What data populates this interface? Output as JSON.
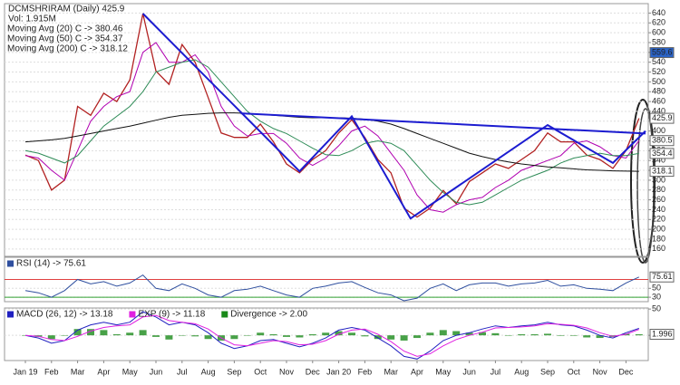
{
  "chart_data": [
    {
      "type": "line",
      "title": "DCMSHRIRAM (Daily) 425.9",
      "subtitle": "Vol: 1.915M",
      "legend": "top-left",
      "grid": true,
      "ylim": [
        145,
        650
      ],
      "yticks": [
        160,
        180,
        200,
        220,
        240,
        260,
        280,
        300,
        320,
        340,
        360,
        380,
        400,
        420,
        440,
        460,
        480,
        500,
        520,
        540,
        560,
        580,
        600,
        620,
        640
      ],
      "series": [
        {
          "color": "#b22222",
          "values": [
            351,
            340,
            280,
            300,
            450,
            432,
            477,
            460,
            504,
            639,
            522,
            495,
            576,
            540,
            468,
            396,
            387,
            387,
            414,
            378,
            333,
            315,
            342,
            360,
            396,
            423,
            387,
            342,
            315,
            243,
            225,
            243,
            279,
            252,
            297,
            315,
            333,
            324,
            342,
            360,
            396,
            378,
            378,
            351,
            342,
            324,
            360,
            425.9
          ]
        },
        {
          "name": "Moving Avg (20) C -> 380.46",
          "color": "#b000b0",
          "values": [
            350,
            345,
            320,
            300,
            360,
            420,
            450,
            470,
            480,
            560,
            580,
            540,
            540,
            555,
            520,
            450,
            410,
            390,
            395,
            395,
            375,
            345,
            330,
            345,
            370,
            400,
            410,
            390,
            355,
            320,
            270,
            240,
            235,
            250,
            260,
            265,
            285,
            300,
            320,
            330,
            340,
            350,
            375,
            380,
            368,
            350,
            345,
            380.46
          ]
        },
        {
          "name": "Moving Avg (50) C -> 354.37",
          "color": "#2e8b57",
          "values": [
            360,
            355,
            345,
            335,
            350,
            380,
            410,
            430,
            450,
            480,
            520,
            530,
            540,
            545,
            530,
            500,
            470,
            440,
            420,
            405,
            395,
            380,
            365,
            352,
            350,
            360,
            375,
            380,
            375,
            360,
            330,
            300,
            275,
            255,
            250,
            255,
            270,
            285,
            300,
            310,
            320,
            335,
            345,
            350,
            355,
            350,
            350,
            354.37
          ]
        },
        {
          "name": "Moving Avg (200) C -> 318.12",
          "color": "#111111",
          "values": [
            378,
            380,
            382,
            385,
            390,
            395,
            400,
            405,
            410,
            416,
            422,
            428,
            432,
            434,
            436,
            437,
            437,
            436,
            434,
            432,
            430,
            428,
            427,
            427,
            427,
            426,
            424,
            420,
            414,
            405,
            395,
            385,
            375,
            365,
            355,
            348,
            342,
            337,
            333,
            330,
            327,
            325,
            323,
            321,
            320,
            319,
            318.5,
            318.12
          ]
        }
      ],
      "trendlines": [
        {
          "color": "#1c1cd0",
          "x": [
            9,
            21,
            25,
            29.5,
            40,
            45,
            47.5
          ],
          "values": [
            639,
            318,
            430,
            222,
            412,
            335,
            400
          ]
        },
        {
          "color": "#1c1cd0",
          "x": [
            16.5,
            47.5
          ],
          "values": [
            436,
            395
          ]
        }
      ],
      "tags": [
        559.6,
        425.9,
        380.5,
        354.4,
        318.1
      ],
      "tag_colors": [
        "#2a63c6",
        "#ffffff",
        "#ffffff",
        "#ffffff",
        "#ffffff"
      ]
    },
    {
      "type": "line",
      "legend": "top-left",
      "grid": true,
      "ylim": [
        20,
        120
      ],
      "yticks": [
        50,
        30
      ],
      "bands": [
        {
          "value": 70,
          "color": "#e04040"
        },
        {
          "value": 30,
          "color": "#30a030"
        }
      ],
      "series": [
        {
          "name": "RSI (14) -> 75.61",
          "color": "#2f4f9f",
          "values": [
            45,
            40,
            30,
            45,
            70,
            60,
            65,
            55,
            62,
            80,
            50,
            45,
            60,
            50,
            35,
            30,
            45,
            48,
            55,
            45,
            35,
            30,
            50,
            55,
            62,
            65,
            52,
            40,
            35,
            22,
            28,
            50,
            60,
            45,
            58,
            62,
            62,
            55,
            60,
            62,
            68,
            55,
            58,
            50,
            48,
            45,
            62,
            75.61
          ]
        }
      ],
      "tags": [
        75.61
      ],
      "tag_colors": [
        "#ffffff"
      ]
    },
    {
      "type": "line",
      "legend": "top-left",
      "grid": true,
      "categories": [
        "Jan 19",
        null,
        "Feb",
        null,
        "Mar",
        null,
        "Apr",
        null,
        "May",
        null,
        "Jun",
        null,
        "Jul",
        null,
        "Aug",
        null,
        "Sep",
        null,
        "Oct",
        null,
        "Nov",
        null,
        "Dec",
        null,
        "Jan 20",
        null,
        "Feb",
        null,
        "Mar",
        null,
        "Apr",
        null,
        "May",
        null,
        "Jun",
        null,
        "Jul",
        null,
        "Aug",
        null,
        "Sep",
        null,
        "Oct",
        null,
        "Nov",
        null,
        "Dec",
        null
      ],
      "ylim": [
        -48,
        52
      ],
      "yticks": [
        50,
        0
      ],
      "series": [
        {
          "name": "Divergence -> 2.00",
          "color": "#1a8a1a",
          "style": "bar",
          "values": [
            0,
            -3,
            -7,
            0,
            12,
            12,
            10,
            2,
            5,
            10,
            -3,
            -8,
            0,
            -2,
            -7,
            -10,
            -7,
            0,
            5,
            2,
            -3,
            -4,
            2,
            5,
            8,
            5,
            -2,
            -7,
            -8,
            -10,
            -5,
            5,
            10,
            8,
            5,
            6,
            4,
            0,
            2,
            2,
            3,
            -1,
            -1,
            -4,
            -5,
            -3,
            3,
            2
          ]
        },
        {
          "name": "MACD (26, 12) -> 13.18",
          "color": "#2020c0",
          "values": [
            0,
            -5,
            -15,
            -10,
            10,
            20,
            25,
            20,
            25,
            45,
            35,
            20,
            25,
            20,
            5,
            -15,
            -25,
            -20,
            -10,
            -8,
            -15,
            -22,
            -15,
            -5,
            10,
            15,
            10,
            -5,
            -20,
            -40,
            -45,
            -30,
            -10,
            0,
            5,
            12,
            18,
            15,
            18,
            20,
            25,
            20,
            18,
            10,
            0,
            -5,
            5,
            13.18
          ]
        },
        {
          "name": "EXP (9) -> 11.18",
          "color": "#e020e0",
          "values": [
            0,
            -2,
            -8,
            -10,
            -2,
            8,
            15,
            18,
            20,
            35,
            38,
            28,
            25,
            22,
            12,
            -5,
            -18,
            -20,
            -15,
            -10,
            -12,
            -18,
            -17,
            -10,
            2,
            10,
            12,
            2,
            -12,
            -30,
            -40,
            -35,
            -20,
            -8,
            0,
            6,
            14,
            15,
            16,
            18,
            22,
            21,
            19,
            14,
            5,
            -2,
            2,
            11.18
          ]
        }
      ],
      "tags": [
        1.996
      ],
      "tag_colors": [
        "#ffffff"
      ]
    }
  ]
}
